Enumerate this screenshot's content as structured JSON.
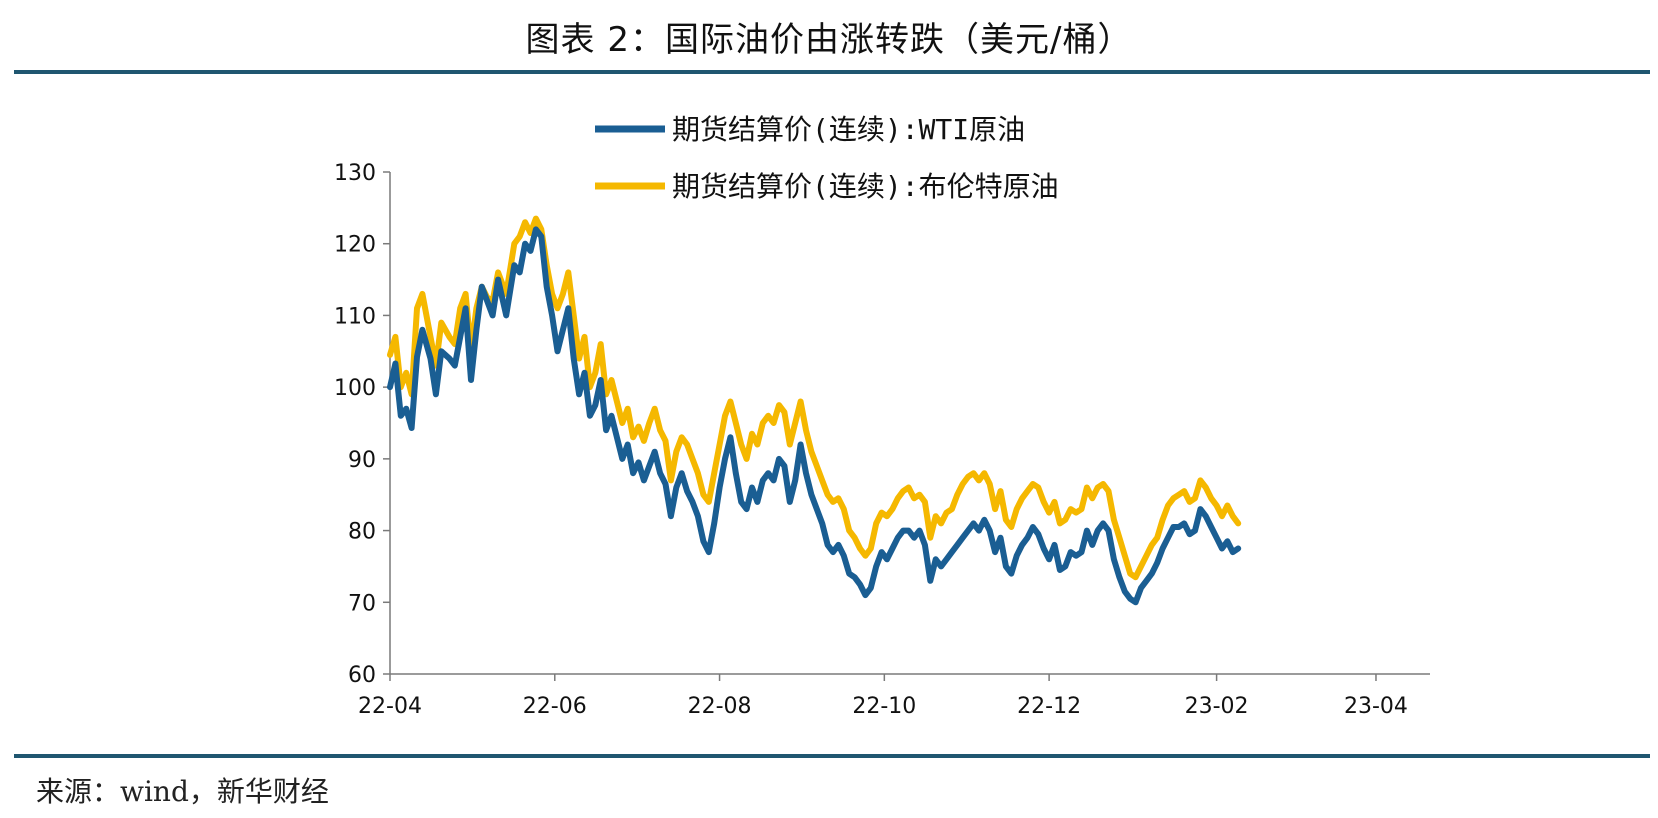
{
  "header": {
    "title": "图表 2：国际油价由涨转跌（美元/桶）"
  },
  "footer": {
    "source": "来源：wind，新华财经"
  },
  "chart_data": {
    "type": "line",
    "title": "图表 2：国际油价由涨转跌（美元/桶）",
    "xlabel": "",
    "ylabel": "",
    "ylim": [
      60,
      130
    ],
    "yticks": [
      60,
      70,
      80,
      90,
      100,
      110,
      120,
      130
    ],
    "grid": false,
    "legend_position": "top-center",
    "x_range_days": [
      0,
      385
    ],
    "x_ticks": [
      {
        "label": "22-04",
        "day": 0
      },
      {
        "label": "22-06",
        "day": 61
      },
      {
        "label": "22-08",
        "day": 122
      },
      {
        "label": "22-10",
        "day": 183
      },
      {
        "label": "22-12",
        "day": 244
      },
      {
        "label": "23-02",
        "day": 306
      },
      {
        "label": "23-04",
        "day": 365
      }
    ],
    "series": [
      {
        "name": "期货结算价(连续):WTI原油",
        "color": "#1a5e93",
        "points": [
          [
            0,
            100.0
          ],
          [
            2,
            103.3
          ],
          [
            4,
            96.0
          ],
          [
            6,
            97.0
          ],
          [
            8,
            94.3
          ],
          [
            10,
            104.2
          ],
          [
            12,
            108.0
          ],
          [
            15,
            104.0
          ],
          [
            17,
            99.0
          ],
          [
            19,
            105.0
          ],
          [
            22,
            104.0
          ],
          [
            24,
            103.0
          ],
          [
            26,
            107.0
          ],
          [
            28,
            111.0
          ],
          [
            30,
            101.0
          ],
          [
            32,
            108.0
          ],
          [
            34,
            114.0
          ],
          [
            36,
            112.0
          ],
          [
            38,
            110.0
          ],
          [
            40,
            115.0
          ],
          [
            43,
            110.0
          ],
          [
            46,
            117.0
          ],
          [
            48,
            116.0
          ],
          [
            50,
            120.0
          ],
          [
            52,
            119.0
          ],
          [
            54,
            122.0
          ],
          [
            56,
            121.0
          ],
          [
            58,
            114.0
          ],
          [
            60,
            110.0
          ],
          [
            62,
            105.0
          ],
          [
            64,
            108.0
          ],
          [
            66,
            111.0
          ],
          [
            68,
            104.0
          ],
          [
            70,
            99.0
          ],
          [
            72,
            102.0
          ],
          [
            74,
            96.0
          ],
          [
            76,
            97.5
          ],
          [
            78,
            101.0
          ],
          [
            80,
            94.0
          ],
          [
            82,
            96.0
          ],
          [
            84,
            93.0
          ],
          [
            86,
            90.0
          ],
          [
            88,
            92.0
          ],
          [
            90,
            88.0
          ],
          [
            92,
            89.5
          ],
          [
            94,
            87.0
          ],
          [
            96,
            89.0
          ],
          [
            98,
            91.0
          ],
          [
            100,
            88.0
          ],
          [
            102,
            86.5
          ],
          [
            104,
            82.0
          ],
          [
            106,
            86.0
          ],
          [
            108,
            88.0
          ],
          [
            110,
            85.5
          ],
          [
            112,
            84.0
          ],
          [
            114,
            82.0
          ],
          [
            116,
            78.5
          ],
          [
            118,
            77.0
          ],
          [
            120,
            81.0
          ],
          [
            122,
            86.0
          ],
          [
            124,
            90.0
          ],
          [
            126,
            93.0
          ],
          [
            128,
            88.0
          ],
          [
            130,
            84.0
          ],
          [
            132,
            83.0
          ],
          [
            134,
            86.0
          ],
          [
            136,
            84.0
          ],
          [
            138,
            87.0
          ],
          [
            140,
            88.0
          ],
          [
            142,
            87.0
          ],
          [
            144,
            90.0
          ],
          [
            146,
            89.0
          ],
          [
            148,
            84.0
          ],
          [
            150,
            87.0
          ],
          [
            152,
            92.0
          ],
          [
            154,
            88.0
          ],
          [
            156,
            85.0
          ],
          [
            158,
            83.0
          ],
          [
            160,
            81.0
          ],
          [
            162,
            78.0
          ],
          [
            164,
            77.0
          ],
          [
            166,
            78.0
          ],
          [
            168,
            76.5
          ],
          [
            170,
            74.0
          ],
          [
            172,
            73.5
          ],
          [
            174,
            72.5
          ],
          [
            176,
            71.0
          ],
          [
            178,
            72.0
          ],
          [
            180,
            75.0
          ],
          [
            182,
            77.0
          ],
          [
            184,
            76.0
          ],
          [
            186,
            77.5
          ],
          [
            188,
            79.0
          ],
          [
            190,
            80.0
          ],
          [
            192,
            80.0
          ],
          [
            194,
            79.0
          ],
          [
            196,
            80.0
          ],
          [
            198,
            78.0
          ],
          [
            200,
            73.0
          ],
          [
            202,
            76.0
          ],
          [
            204,
            75.0
          ],
          [
            206,
            76.0
          ],
          [
            208,
            77.0
          ],
          [
            210,
            78.0
          ],
          [
            212,
            79.0
          ],
          [
            214,
            80.0
          ],
          [
            216,
            81.0
          ],
          [
            218,
            80.0
          ],
          [
            220,
            81.5
          ],
          [
            222,
            80.0
          ],
          [
            224,
            77.0
          ],
          [
            226,
            79.0
          ],
          [
            228,
            75.0
          ],
          [
            230,
            74.0
          ],
          [
            232,
            76.5
          ],
          [
            234,
            78.0
          ],
          [
            236,
            79.0
          ],
          [
            238,
            80.5
          ],
          [
            240,
            79.5
          ],
          [
            242,
            77.5
          ],
          [
            244,
            76.0
          ],
          [
            246,
            78.0
          ],
          [
            248,
            74.5
          ],
          [
            250,
            75.0
          ],
          [
            252,
            77.0
          ],
          [
            254,
            76.5
          ],
          [
            256,
            77.0
          ],
          [
            258,
            80.0
          ],
          [
            260,
            78.0
          ],
          [
            262,
            80.0
          ],
          [
            264,
            81.0
          ],
          [
            266,
            80.0
          ],
          [
            268,
            76.0
          ],
          [
            270,
            73.5
          ],
          [
            272,
            71.5
          ],
          [
            274,
            70.5
          ],
          [
            276,
            70.0
          ],
          [
            278,
            72.0
          ],
          [
            280,
            73.0
          ],
          [
            282,
            74.0
          ],
          [
            284,
            75.5
          ],
          [
            286,
            77.5
          ],
          [
            288,
            79.0
          ],
          [
            290,
            80.5
          ],
          [
            292,
            80.5
          ],
          [
            294,
            81.0
          ],
          [
            296,
            79.5
          ],
          [
            298,
            80.0
          ],
          [
            300,
            83.0
          ],
          [
            302,
            82.0
          ],
          [
            304,
            80.5
          ],
          [
            306,
            79.0
          ],
          [
            308,
            77.5
          ],
          [
            310,
            78.5
          ],
          [
            312,
            77.0
          ],
          [
            314,
            77.5
          ]
        ]
      },
      {
        "name": "期货结算价(连续):布伦特原油",
        "color": "#f5b800",
        "points": [
          [
            0,
            104.5
          ],
          [
            2,
            107.0
          ],
          [
            4,
            100.0
          ],
          [
            6,
            102.0
          ],
          [
            8,
            99.0
          ],
          [
            10,
            111.0
          ],
          [
            12,
            113.0
          ],
          [
            15,
            107.0
          ],
          [
            17,
            103.0
          ],
          [
            19,
            109.0
          ],
          [
            22,
            107.0
          ],
          [
            24,
            106.0
          ],
          [
            26,
            111.0
          ],
          [
            28,
            113.0
          ],
          [
            30,
            105.0
          ],
          [
            32,
            111.0
          ],
          [
            34,
            114.0
          ],
          [
            36,
            112.5
          ],
          [
            38,
            112.0
          ],
          [
            40,
            116.0
          ],
          [
            43,
            113.0
          ],
          [
            46,
            120.0
          ],
          [
            48,
            121.0
          ],
          [
            50,
            123.0
          ],
          [
            52,
            121.5
          ],
          [
            54,
            123.5
          ],
          [
            56,
            122.0
          ],
          [
            58,
            117.0
          ],
          [
            60,
            113.0
          ],
          [
            62,
            111.0
          ],
          [
            64,
            113.0
          ],
          [
            66,
            116.0
          ],
          [
            68,
            110.0
          ],
          [
            70,
            104.0
          ],
          [
            72,
            107.0
          ],
          [
            74,
            100.0
          ],
          [
            76,
            102.0
          ],
          [
            78,
            106.0
          ],
          [
            80,
            99.0
          ],
          [
            82,
            101.0
          ],
          [
            84,
            98.0
          ],
          [
            86,
            95.0
          ],
          [
            88,
            97.0
          ],
          [
            90,
            93.0
          ],
          [
            92,
            94.5
          ],
          [
            94,
            92.5
          ],
          [
            96,
            95.0
          ],
          [
            98,
            97.0
          ],
          [
            100,
            94.0
          ],
          [
            102,
            92.5
          ],
          [
            104,
            87.0
          ],
          [
            106,
            91.0
          ],
          [
            108,
            93.0
          ],
          [
            110,
            92.0
          ],
          [
            112,
            90.0
          ],
          [
            114,
            88.0
          ],
          [
            116,
            85.0
          ],
          [
            118,
            84.0
          ],
          [
            120,
            88.0
          ],
          [
            122,
            92.0
          ],
          [
            124,
            96.0
          ],
          [
            126,
            98.0
          ],
          [
            128,
            95.0
          ],
          [
            130,
            92.0
          ],
          [
            132,
            90.0
          ],
          [
            134,
            93.5
          ],
          [
            136,
            92.0
          ],
          [
            138,
            95.0
          ],
          [
            140,
            96.0
          ],
          [
            142,
            95.0
          ],
          [
            144,
            97.5
          ],
          [
            146,
            96.5
          ],
          [
            148,
            92.0
          ],
          [
            150,
            95.0
          ],
          [
            152,
            98.0
          ],
          [
            154,
            94.0
          ],
          [
            156,
            91.0
          ],
          [
            158,
            89.0
          ],
          [
            160,
            87.0
          ],
          [
            162,
            85.0
          ],
          [
            164,
            84.0
          ],
          [
            166,
            84.5
          ],
          [
            168,
            83.0
          ],
          [
            170,
            80.0
          ],
          [
            172,
            79.0
          ],
          [
            174,
            77.5
          ],
          [
            176,
            76.5
          ],
          [
            178,
            77.5
          ],
          [
            180,
            81.0
          ],
          [
            182,
            82.5
          ],
          [
            184,
            82.0
          ],
          [
            186,
            83.0
          ],
          [
            188,
            84.5
          ],
          [
            190,
            85.5
          ],
          [
            192,
            86.0
          ],
          [
            194,
            84.5
          ],
          [
            196,
            85.0
          ],
          [
            198,
            84.0
          ],
          [
            200,
            79.0
          ],
          [
            202,
            82.0
          ],
          [
            204,
            81.0
          ],
          [
            206,
            82.5
          ],
          [
            208,
            83.0
          ],
          [
            210,
            85.0
          ],
          [
            212,
            86.5
          ],
          [
            214,
            87.5
          ],
          [
            216,
            88.0
          ],
          [
            218,
            87.0
          ],
          [
            220,
            88.0
          ],
          [
            222,
            86.5
          ],
          [
            224,
            83.0
          ],
          [
            226,
            85.5
          ],
          [
            228,
            81.5
          ],
          [
            230,
            80.5
          ],
          [
            232,
            83.0
          ],
          [
            234,
            84.5
          ],
          [
            236,
            85.5
          ],
          [
            238,
            86.5
          ],
          [
            240,
            86.0
          ],
          [
            242,
            84.0
          ],
          [
            244,
            82.5
          ],
          [
            246,
            84.0
          ],
          [
            248,
            81.0
          ],
          [
            250,
            81.5
          ],
          [
            252,
            83.0
          ],
          [
            254,
            82.5
          ],
          [
            256,
            83.0
          ],
          [
            258,
            86.0
          ],
          [
            260,
            84.5
          ],
          [
            262,
            86.0
          ],
          [
            264,
            86.5
          ],
          [
            266,
            85.5
          ],
          [
            268,
            81.5
          ],
          [
            270,
            79.0
          ],
          [
            272,
            76.5
          ],
          [
            274,
            74.0
          ],
          [
            276,
            73.5
          ],
          [
            278,
            75.0
          ],
          [
            280,
            76.5
          ],
          [
            282,
            78.0
          ],
          [
            284,
            79.0
          ],
          [
            286,
            81.5
          ],
          [
            288,
            83.5
          ],
          [
            290,
            84.5
          ],
          [
            292,
            85.0
          ],
          [
            294,
            85.5
          ],
          [
            296,
            84.0
          ],
          [
            298,
            84.5
          ],
          [
            300,
            87.0
          ],
          [
            302,
            86.0
          ],
          [
            304,
            84.5
          ],
          [
            306,
            83.5
          ],
          [
            308,
            82.0
          ],
          [
            310,
            83.5
          ],
          [
            312,
            82.0
          ],
          [
            314,
            81.0
          ]
        ]
      }
    ]
  }
}
